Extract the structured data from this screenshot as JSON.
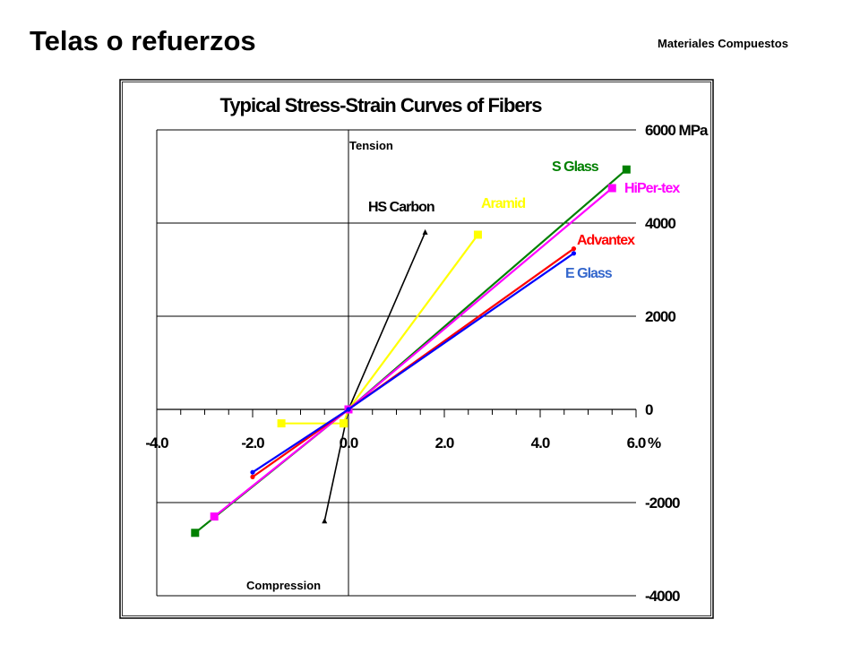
{
  "slide": {
    "title": "Telas o refuerzos",
    "subtitle": "Materiales Compuestos"
  },
  "chart_data": {
    "type": "line",
    "title": "Typical Stress-Strain Curves of Fibers",
    "x_unit": "%",
    "y_unit": "MPa",
    "xlim": [
      -4.0,
      6.0
    ],
    "ylim": [
      -4000,
      6000
    ],
    "x_ticks": [
      -4.0,
      -2.0,
      0.0,
      2.0,
      4.0,
      6.0
    ],
    "x_tick_labels": [
      "-4.0",
      "-2.0",
      "0.0",
      "2.0",
      "4.0",
      "6.0"
    ],
    "y_ticks": [
      6000,
      4000,
      2000,
      0,
      -2000,
      -4000
    ],
    "y_tick_labels": [
      "6000 MPa",
      "4000",
      "2000",
      "0",
      "-2000",
      "-4000"
    ],
    "region_labels": {
      "tension": "Tension",
      "compression": "Compression"
    },
    "grid": true,
    "series": [
      {
        "name": "HS Carbon",
        "color": "#000000",
        "marker": "triangle",
        "points": [
          [
            -0.5,
            -2400
          ],
          [
            0.0,
            0
          ],
          [
            1.6,
            3800
          ]
        ]
      },
      {
        "name": "Aramid",
        "color": "#ffff00",
        "marker": "square",
        "points": [
          [
            -0.1,
            -300
          ],
          [
            0.0,
            0
          ],
          [
            2.7,
            3750
          ]
        ],
        "compression_points": [
          [
            -1.4,
            -300
          ],
          [
            -0.1,
            -300
          ]
        ]
      },
      {
        "name": "S Glass",
        "color": "#008000",
        "marker": "square",
        "points": [
          [
            -3.2,
            -2650
          ],
          [
            0.0,
            0
          ],
          [
            5.8,
            5150
          ]
        ]
      },
      {
        "name": "HiPer-tex",
        "color": "#ff00ff",
        "marker": "square",
        "points": [
          [
            -2.8,
            -2300
          ],
          [
            0.0,
            0
          ],
          [
            5.5,
            4750
          ]
        ]
      },
      {
        "name": "Advantex",
        "color": "#ff0000",
        "marker": "dot",
        "points": [
          [
            -2.0,
            -1450
          ],
          [
            0.0,
            0
          ],
          [
            4.7,
            3450
          ]
        ]
      },
      {
        "name": "E Glass",
        "color": "#0000ff",
        "marker": "dot",
        "points": [
          [
            -2.0,
            -1350
          ],
          [
            0.0,
            0
          ],
          [
            4.7,
            3350
          ]
        ]
      }
    ],
    "series_label_colors": {
      "HS Carbon": "#000000",
      "Aramid": "#ffff00",
      "S Glass": "#008000",
      "HiPer-tex": "#ff00ff",
      "Advantex": "#ff0000",
      "E Glass": "#3366cc"
    }
  }
}
